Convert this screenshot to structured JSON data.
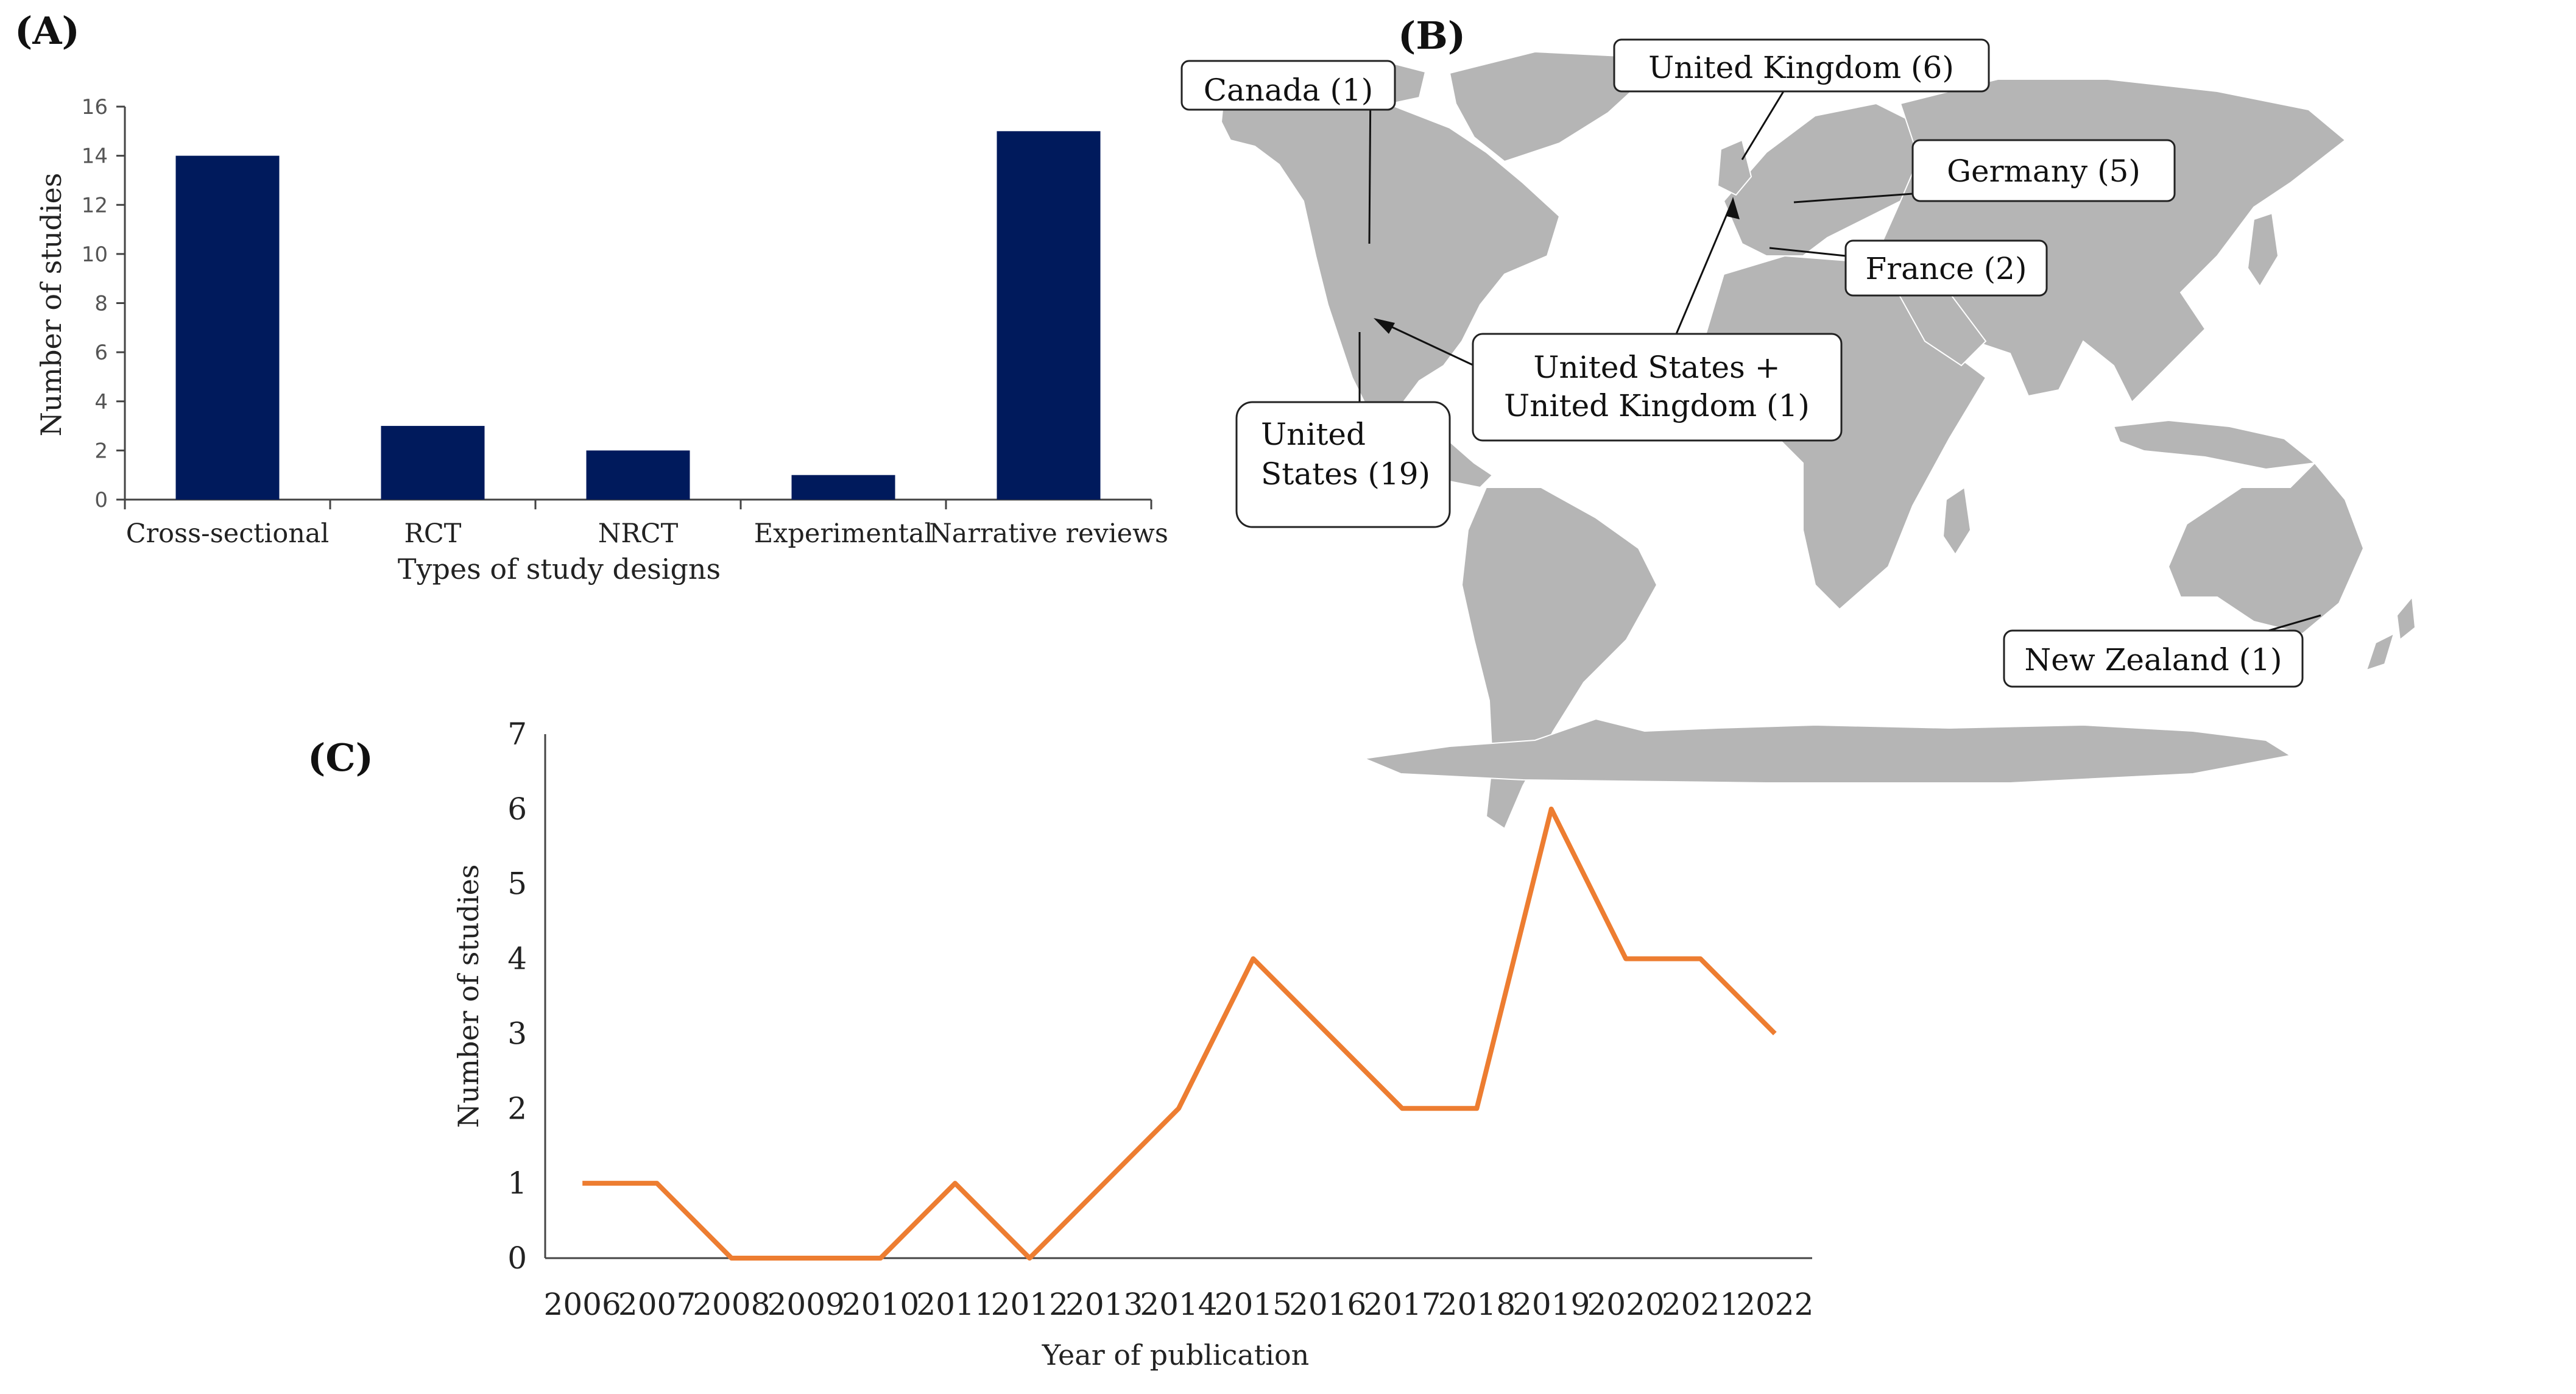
{
  "colors": {
    "bar": "#001a5c",
    "line": "#ed7d31",
    "land": "#b5b5b5",
    "axis": "#444444"
  },
  "chart_data": [
    {
      "panel": "(A)",
      "type": "bar",
      "categories": [
        "Cross-sectional",
        "RCT",
        "NRCT",
        "Experimental",
        "Narrative reviews"
      ],
      "values": [
        14,
        3,
        2,
        1,
        15
      ],
      "xlabel": "Types of study designs",
      "ylabel": "Number of studies",
      "ylim": [
        0,
        16
      ],
      "yticks": [
        0,
        2,
        4,
        6,
        8,
        10,
        12,
        14,
        16
      ]
    },
    {
      "panel": "(C)",
      "type": "line",
      "x": [
        "2006",
        "2007",
        "2008",
        "2009",
        "2010",
        "2011",
        "2012",
        "2013",
        "2014",
        "2015",
        "2016",
        "2017",
        "2018",
        "2019",
        "2020",
        "2021",
        "2022"
      ],
      "values": [
        1,
        1,
        0,
        0,
        0,
        1,
        0,
        1,
        2,
        4,
        3,
        2,
        2,
        6,
        4,
        4,
        3
      ],
      "xlabel": "Year of publication",
      "ylabel": "Number of studies",
      "ylim": [
        0,
        7
      ],
      "yticks": [
        0,
        1,
        2,
        3,
        4,
        5,
        6,
        7
      ]
    }
  ],
  "map": {
    "panel": "(B)",
    "callouts": [
      {
        "id": "canada",
        "lines": [
          "Canada (1)"
        ]
      },
      {
        "id": "uk",
        "lines": [
          "United Kingdom (6)"
        ]
      },
      {
        "id": "germany",
        "lines": [
          "Germany (5)"
        ]
      },
      {
        "id": "france",
        "lines": [
          "France (2)"
        ]
      },
      {
        "id": "us-uk",
        "lines": [
          "United States +",
          "United Kingdom (1)"
        ]
      },
      {
        "id": "us",
        "lines": [
          "United",
          "States (19)"
        ]
      },
      {
        "id": "nz",
        "lines": [
          "New Zealand (1)"
        ]
      }
    ]
  }
}
